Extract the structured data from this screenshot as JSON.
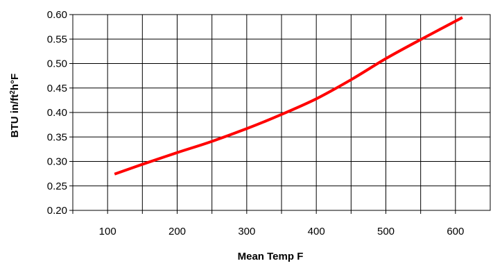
{
  "chart_data": {
    "type": "line",
    "title": "",
    "xlabel": "Mean Temp F",
    "ylabel": "BTU in/ft²h°F",
    "ylabel_parts": {
      "prefix": "BTU in/ft",
      "superscript": "2",
      "suffix": "h°F"
    },
    "xlim": [
      50,
      650
    ],
    "ylim": [
      0.2,
      0.6
    ],
    "x_ticks": [
      100,
      200,
      300,
      400,
      500,
      600
    ],
    "x_tick_labels": [
      "100",
      "200",
      "300",
      "400",
      "500",
      "600"
    ],
    "y_ticks": [
      0.2,
      0.25,
      0.3,
      0.35,
      0.4,
      0.45,
      0.5,
      0.55,
      0.6
    ],
    "y_tick_labels": [
      "0.20",
      "0.25",
      "0.30",
      "0.35",
      "0.40",
      "0.45",
      "0.50",
      "0.55",
      "0.60"
    ],
    "grid": true,
    "legend": "none",
    "series": [
      {
        "color": "#ff0000",
        "x": [
          110,
          150,
          200,
          250,
          300,
          350,
          400,
          450,
          500,
          550,
          610
        ],
        "y": [
          0.274,
          0.294,
          0.318,
          0.341,
          0.367,
          0.396,
          0.428,
          0.467,
          0.51,
          0.549,
          0.594
        ]
      }
    ]
  }
}
